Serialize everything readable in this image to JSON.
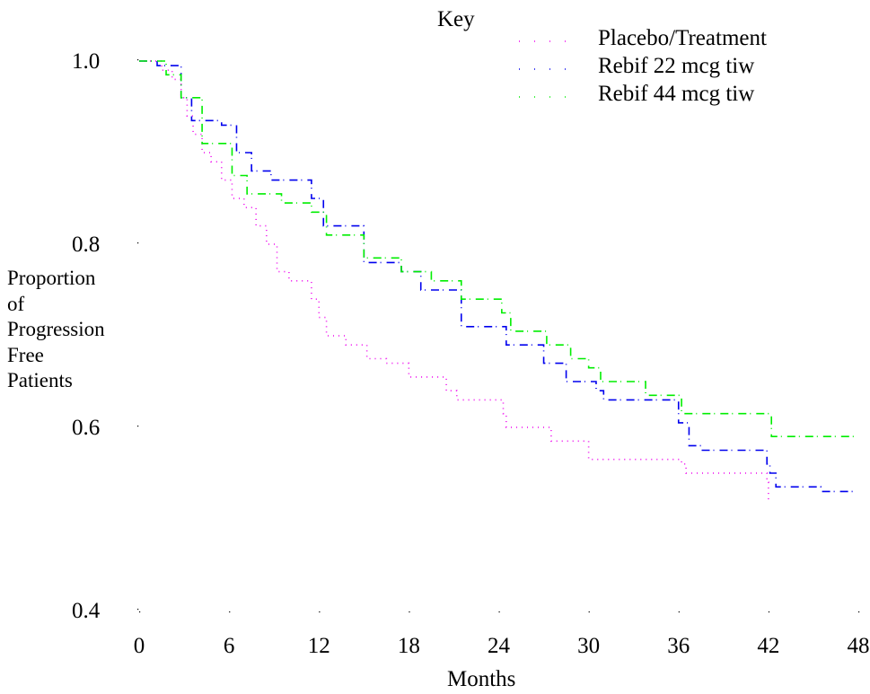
{
  "chart_data": {
    "type": "line",
    "xlabel": "Months",
    "ylabel_lines": [
      "Proportion",
      "of",
      "Progression",
      "Free",
      "Patients"
    ],
    "legend_title": "Key",
    "legend_position": "top-right",
    "xlim": [
      0,
      48
    ],
    "ylim": [
      0.4,
      1.0
    ],
    "x_ticks": [
      0,
      6,
      12,
      18,
      24,
      30,
      36,
      42,
      48
    ],
    "y_ticks": [
      0.4,
      0.6,
      0.8,
      1.0
    ],
    "x_tick_labels": [
      "0",
      "6",
      "12",
      "18",
      "24",
      "30",
      "36",
      "42",
      "48"
    ],
    "y_tick_labels": [
      "0.4",
      "0.6",
      "0.8",
      "1.0"
    ],
    "grid": false,
    "series": [
      {
        "name": "Placebo/Treatment",
        "color": "#ee00ee",
        "x": [
          0,
          1.5,
          2.2,
          2.8,
          3.2,
          3.6,
          4.2,
          4.8,
          5.5,
          6.2,
          7,
          7.8,
          8.5,
          9.2,
          10,
          11.5,
          12,
          12.5,
          13.8,
          15.2,
          16.5,
          18,
          20.5,
          21.2,
          24.3,
          24.5,
          27.5,
          30,
          36.2,
          36.5,
          41.9,
          42
        ],
        "y": [
          1.0,
          0.99,
          0.98,
          0.96,
          0.94,
          0.92,
          0.9,
          0.89,
          0.87,
          0.85,
          0.84,
          0.82,
          0.8,
          0.77,
          0.76,
          0.74,
          0.72,
          0.7,
          0.69,
          0.675,
          0.67,
          0.655,
          0.64,
          0.63,
          0.615,
          0.6,
          0.585,
          0.565,
          0.56,
          0.55,
          0.54,
          0.52
        ]
      },
      {
        "name": "Rebif 22 mcg tiw",
        "color": "#0000ee",
        "x": [
          0,
          1.2,
          2.8,
          3.5,
          5.5,
          6.5,
          7.5,
          8.8,
          11.5,
          12.3,
          15,
          17.5,
          18.8,
          21.5,
          24.5,
          27,
          28.5,
          30.5,
          31,
          36,
          36.7,
          37.5,
          41.9,
          42.1,
          42.5,
          45.5,
          47.8
        ],
        "y": [
          1.0,
          0.995,
          0.96,
          0.935,
          0.93,
          0.9,
          0.88,
          0.87,
          0.85,
          0.82,
          0.78,
          0.77,
          0.75,
          0.71,
          0.69,
          0.67,
          0.65,
          0.64,
          0.63,
          0.605,
          0.58,
          0.575,
          0.56,
          0.55,
          0.535,
          0.53,
          0.53
        ]
      },
      {
        "name": "Rebif 44 mcg tiw",
        "color": "#00ee00",
        "x": [
          0,
          1.8,
          2.8,
          4.2,
          6.2,
          7.2,
          9.5,
          11.5,
          12.5,
          15,
          17.5,
          19.5,
          21.5,
          24.2,
          24.8,
          27.2,
          28.8,
          30,
          30.8,
          33.8,
          36.2,
          42.2,
          47.8
        ],
        "y": [
          1.0,
          0.985,
          0.96,
          0.91,
          0.875,
          0.855,
          0.845,
          0.835,
          0.81,
          0.785,
          0.77,
          0.76,
          0.74,
          0.725,
          0.705,
          0.69,
          0.675,
          0.665,
          0.65,
          0.635,
          0.615,
          0.59,
          0.59
        ]
      }
    ]
  }
}
